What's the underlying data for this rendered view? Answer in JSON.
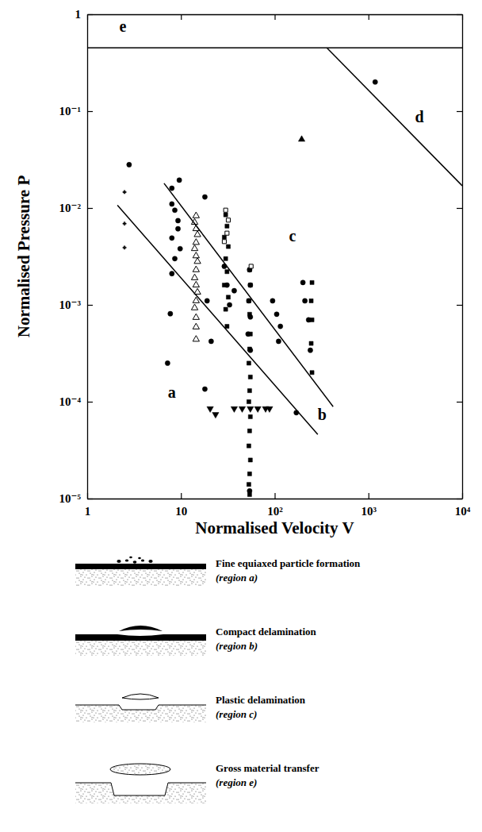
{
  "chart_data": {
    "type": "scatter",
    "xlabel": "Normalised Velocity V",
    "ylabel": "Normalised Pressure P",
    "log": true,
    "grid": false,
    "xlim": [
      1,
      10000
    ],
    "ylim": [
      1e-05,
      1
    ],
    "xticks": [
      1,
      10,
      {
        "value": 100,
        "label": "10²"
      },
      {
        "value": 1000,
        "label": "10³"
      },
      {
        "value": 10000,
        "label": "10⁴"
      }
    ],
    "yticks": [
      1,
      {
        "value": 0.1,
        "label": "10⁻¹"
      },
      {
        "value": 0.01,
        "label": "10⁻²"
      },
      {
        "value": 0.001,
        "label": "10⁻³"
      },
      {
        "value": 0.0001,
        "label": "10⁻⁴"
      },
      {
        "value": 1e-05,
        "label": "10⁻⁵"
      }
    ],
    "series": [
      {
        "marker": "circle",
        "color": "#000000",
        "x": [
          2.8,
          7.7,
          7.2,
          8,
          9.6,
          8,
          8.6,
          9.3,
          9.3,
          8,
          9.8,
          8.6,
          8,
          18,
          19,
          21,
          18,
          29,
          31,
          33,
          37,
          54,
          55,
          53,
          55,
          52,
          55,
          54,
          95,
          105,
          115,
          110,
          170,
          200,
          210,
          230,
          240,
          1180
        ],
        "values": [
          0.028,
          0.00081,
          0.00025,
          0.016,
          0.0194,
          0.011,
          0.0095,
          0.0074,
          0.0061,
          0.0049,
          0.0038,
          0.003,
          0.0021,
          0.013,
          0.0011,
          0.00042,
          0.000135,
          0.0025,
          0.0016,
          0.001,
          0.0014,
          0.0023,
          0.0016,
          0.0011,
          0.00075,
          0.0005,
          0.00034,
          1.2e-05,
          0.0011,
          0.0008,
          0.0006,
          0.00042,
          7.7e-05,
          0.0017,
          0.0011,
          0.0007,
          0.00034,
          0.2
        ]
      },
      {
        "marker": "triangle-open",
        "color": "#000000",
        "x": [
          14.5,
          14,
          14.5,
          15,
          14.5,
          14,
          14.5,
          15,
          14.5,
          14,
          14.5,
          15,
          14.5,
          14,
          14.5,
          14.5,
          14.5
        ],
        "values": [
          0.0083,
          0.0071,
          0.0061,
          0.0053,
          0.0044,
          0.0038,
          0.0032,
          0.0028,
          0.0023,
          0.0019,
          0.0016,
          0.00135,
          0.0011,
          0.00093,
          0.00074,
          0.00059,
          0.00044
        ]
      },
      {
        "marker": "square",
        "color": "#000000",
        "x": [
          30,
          31,
          29,
          32,
          30,
          31,
          29,
          32,
          30,
          31,
          54,
          55,
          53,
          54,
          55,
          54,
          53,
          55,
          54,
          53,
          55,
          54,
          53,
          55,
          54,
          53,
          54,
          250,
          245,
          250,
          245,
          250
        ],
        "values": [
          0.0085,
          0.0065,
          0.005,
          0.004,
          0.003,
          0.0022,
          0.0016,
          0.0012,
          0.0009,
          0.0006,
          0.0023,
          0.0016,
          0.0011,
          0.0008,
          0.0005,
          0.00035,
          0.00025,
          0.00018,
          0.00013,
          0.0001,
          7e-05,
          5e-05,
          3.5e-05,
          2.5e-05,
          1.8e-05,
          1.4e-05,
          1.1e-05,
          0.0017,
          0.0011,
          0.0007,
          0.0004,
          0.0002
        ]
      },
      {
        "marker": "square-open",
        "color": "#000000",
        "x": [
          30,
          32,
          31,
          29,
          56
        ],
        "values": [
          0.0095,
          0.0075,
          0.0055,
          0.0045,
          0.0025
        ]
      },
      {
        "marker": "triangle-down",
        "color": "#000000",
        "x": [
          20.5,
          23.4,
          37,
          45,
          55,
          66,
          80,
          88
        ],
        "values": [
          8.5e-05,
          7.4e-05,
          8.5e-05,
          8.5e-05,
          8.5e-05,
          8.5e-05,
          8.5e-05,
          8.5e-05
        ]
      },
      {
        "marker": "plus",
        "color": "#000000",
        "x": [
          2.5,
          2.5,
          2.5
        ],
        "values": [
          0.0146,
          0.0069,
          0.0039
        ]
      },
      {
        "marker": "triangle",
        "color": "#000000",
        "x": [
          194
        ],
        "values": [
          0.051
        ]
      },
      {
        "type": "line",
        "line_style": "solid",
        "color": "#000000",
        "x": [
          1,
          10000
        ],
        "values": [
          0.45,
          0.45
        ]
      },
      {
        "type": "line",
        "line_style": "solid",
        "color": "#000000",
        "x": [
          360,
          10000
        ],
        "values": [
          0.45,
          0.017
        ]
      },
      {
        "type": "line",
        "line_style": "solid",
        "color": "#000000",
        "x": [
          2.1,
          288
        ],
        "values": [
          0.0107,
          4.6e-05
        ]
      },
      {
        "type": "line",
        "line_style": "solid",
        "color": "#000000",
        "x": [
          6.6,
          420
        ],
        "values": [
          0.018,
          8.9e-05
        ]
      }
    ],
    "annotations": [
      {
        "text": "a",
        "x": 8,
        "y": 0.00012
      },
      {
        "text": "b",
        "x": 320,
        "y": 7e-05
      },
      {
        "text": "c",
        "x": 155,
        "y": 0.0049
      },
      {
        "text": "d",
        "x": 3500,
        "y": 0.083
      },
      {
        "text": "e",
        "x": 2.4,
        "y": 0.72
      }
    ]
  },
  "schematics": [
    {
      "title": "Fine equiaxed particle formation",
      "region": "(region a)"
    },
    {
      "title": "Compact delamination",
      "region": "(region b)"
    },
    {
      "title": "Plastic delamination",
      "region": "(region c)"
    },
    {
      "title": "Gross material transfer",
      "region": "(region e)"
    }
  ]
}
